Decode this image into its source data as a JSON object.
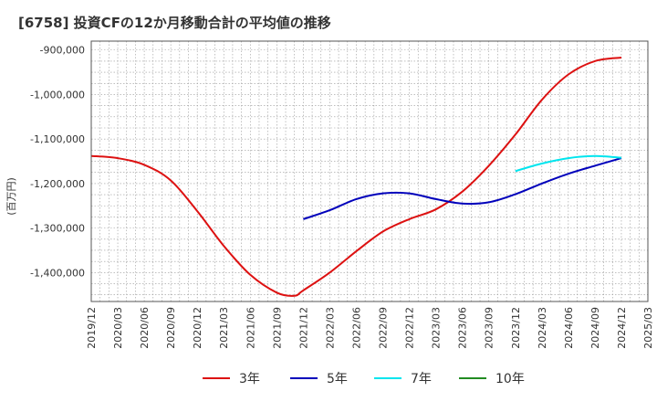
{
  "colors": {
    "3年": "#dd1111",
    "5年": "#0000bb",
    "7年": "#00e5ee",
    "10年": "#228b22",
    "grid": "#999999",
    "frame": "#555555"
  },
  "chart_data": {
    "type": "line",
    "title": "[6758]  投資CFの12か月移動合計の平均値の推移",
    "ylabel": "(百万円)",
    "xlabel": "",
    "x_tick_labels": [
      "2019/12",
      "2020/03",
      "2020/06",
      "2020/09",
      "2020/12",
      "2021/03",
      "2021/06",
      "2021/09",
      "2021/12",
      "2022/03",
      "2022/06",
      "2022/09",
      "2022/12",
      "2023/03",
      "2023/06",
      "2023/09",
      "2023/12",
      "2024/03",
      "2024/06",
      "2024/09",
      "2024/12",
      "2025/03"
    ],
    "y_tick_labels": [
      "-900,000",
      "-1,000,000",
      "-1,100,000",
      "-1,200,000",
      "-1,300,000",
      "-1,400,000"
    ],
    "y_ticks": [
      -900000,
      -1000000,
      -1100000,
      -1200000,
      -1300000,
      -1400000
    ],
    "ylim": [
      -1465000,
      -880000
    ],
    "grid": true,
    "legend_position": "bottom",
    "series": [
      {
        "name": "3年",
        "points": [
          [
            "2019/12",
            -1138000
          ],
          [
            "2020/03",
            -1143000
          ],
          [
            "2020/06",
            -1158000
          ],
          [
            "2020/09",
            -1193000
          ],
          [
            "2020/12",
            -1262000
          ],
          [
            "2021/03",
            -1340000
          ],
          [
            "2021/06",
            -1405000
          ],
          [
            "2021/09",
            -1445000
          ],
          [
            "2021/11",
            -1452000
          ],
          [
            "2021/12",
            -1440000
          ],
          [
            "2022/03",
            -1400000
          ],
          [
            "2022/06",
            -1352000
          ],
          [
            "2022/09",
            -1308000
          ],
          [
            "2022/12",
            -1280000
          ],
          [
            "2023/03",
            -1258000
          ],
          [
            "2023/06",
            -1218000
          ],
          [
            "2023/09",
            -1160000
          ],
          [
            "2023/12",
            -1090000
          ],
          [
            "2024/03",
            -1012000
          ],
          [
            "2024/06",
            -955000
          ],
          [
            "2024/09",
            -925000
          ],
          [
            "2024/12",
            -917000
          ]
        ]
      },
      {
        "name": "5年",
        "points": [
          [
            "2021/12",
            -1280000
          ],
          [
            "2022/03",
            -1260000
          ],
          [
            "2022/06",
            -1235000
          ],
          [
            "2022/09",
            -1222000
          ],
          [
            "2022/12",
            -1222000
          ],
          [
            "2023/03",
            -1235000
          ],
          [
            "2023/06",
            -1245000
          ],
          [
            "2023/09",
            -1242000
          ],
          [
            "2023/12",
            -1224000
          ],
          [
            "2024/03",
            -1200000
          ],
          [
            "2024/06",
            -1178000
          ],
          [
            "2024/09",
            -1160000
          ],
          [
            "2024/12",
            -1143000
          ]
        ]
      },
      {
        "name": "7年",
        "points": [
          [
            "2023/12",
            -1172000
          ],
          [
            "2024/03",
            -1155000
          ],
          [
            "2024/06",
            -1143000
          ],
          [
            "2024/09",
            -1138000
          ],
          [
            "2024/12",
            -1142000
          ]
        ]
      },
      {
        "name": "10年",
        "points": []
      }
    ]
  }
}
